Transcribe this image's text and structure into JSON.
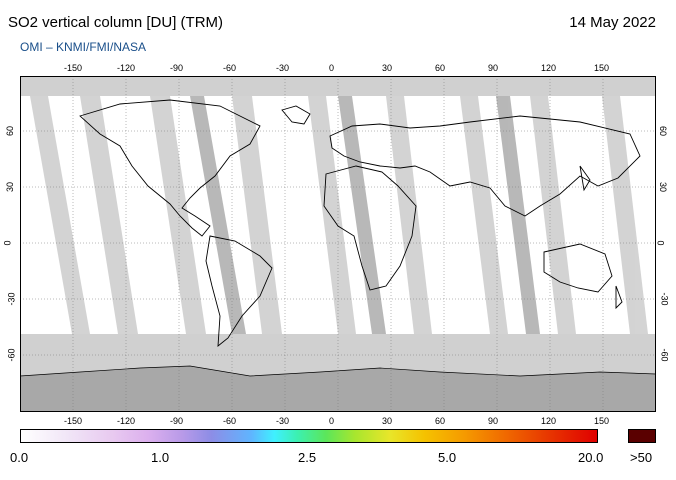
{
  "header": {
    "title": "SO2 vertical column [DU] (TRM)",
    "date": "14 May 2022",
    "credit": "OMI  –  KNMI/FMI/NASA"
  },
  "map": {
    "lon_ticks": [
      "-150",
      "-120",
      "-90",
      "-60",
      "-30",
      "0",
      "30",
      "60",
      "90",
      "120",
      "150"
    ],
    "lat_ticks_left": [
      "60",
      "30",
      "0",
      "-30",
      "-60"
    ],
    "lat_ticks_right": [
      "60",
      "30",
      "0",
      "-30",
      "-60"
    ]
  },
  "colorbar": {
    "labels": [
      "0.0",
      "1.0",
      "2.5",
      "5.0",
      "20.0"
    ],
    "over_label": ">50",
    "gradient_colors": [
      "#ffffff",
      "#e8c9f0",
      "#8d8de6",
      "#3ff0ff",
      "#5ce65a",
      "#e8e62a",
      "#f59a00",
      "#e00000"
    ],
    "over_color": "#5a0000"
  }
}
